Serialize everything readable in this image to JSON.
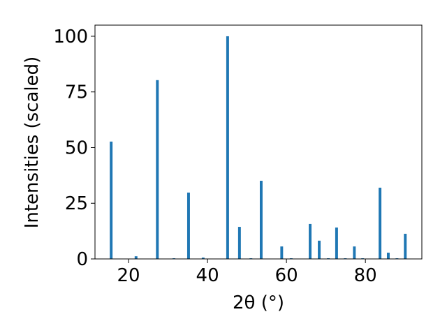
{
  "chart_data": {
    "type": "bar",
    "xlabel": "2θ (°)",
    "ylabel": "Intensities (scaled)",
    "x": [
      15.6,
      21.9,
      27.3,
      31.5,
      35.2,
      38.9,
      45.1,
      48.1,
      51.0,
      53.6,
      58.8,
      61.2,
      66.0,
      68.3,
      70.6,
      72.7,
      74.9,
      77.2,
      79.3,
      83.7,
      85.8,
      88.0,
      90.1
    ],
    "values": [
      52.7,
      1.2,
      80.3,
      0.3,
      29.8,
      0.6,
      100,
      14.4,
      0.3,
      35.1,
      5.6,
      0.3,
      15.7,
      8.2,
      0.3,
      14.1,
      0.3,
      5.6,
      0.3,
      32.0,
      2.8,
      0.3,
      11.3
    ],
    "color": "#1f77b4",
    "xlim": [
      11.5,
      94.3
    ],
    "ylim": [
      0,
      105
    ],
    "xticks": [
      20,
      40,
      60,
      80
    ],
    "yticks": [
      0,
      25,
      50,
      75,
      100
    ]
  }
}
